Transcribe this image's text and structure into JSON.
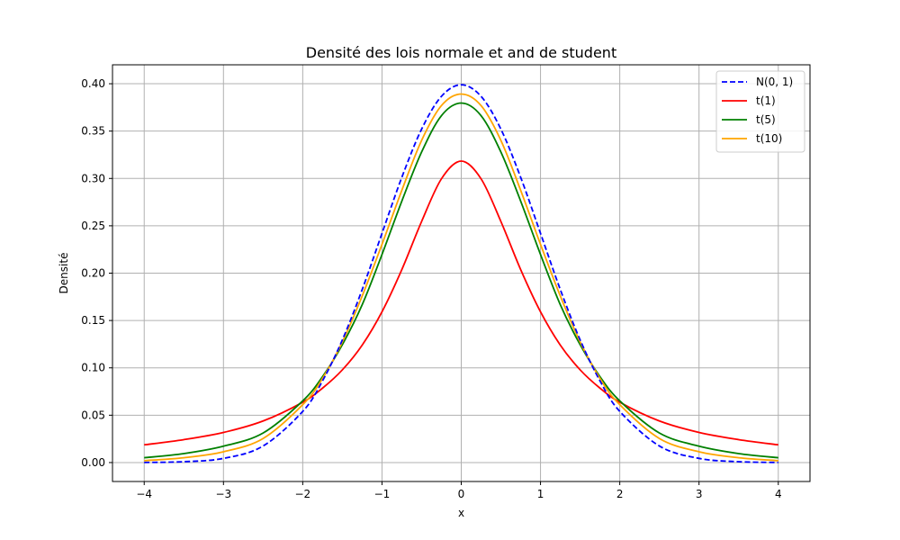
{
  "chart_data": {
    "type": "line",
    "title": "Densité des lois normale et and de student",
    "xlabel": "x",
    "ylabel": "Densité",
    "xlim": [
      -4.4,
      4.4
    ],
    "ylim": [
      -0.02,
      0.42
    ],
    "x_ticks": [
      -4,
      -3,
      -2,
      -1,
      0,
      1,
      2,
      3,
      4
    ],
    "x_tick_labels": [
      "−4",
      "−3",
      "−2",
      "−1",
      "0",
      "1",
      "2",
      "3",
      "4"
    ],
    "y_ticks": [
      0.0,
      0.05,
      0.1,
      0.15,
      0.2,
      0.25,
      0.3,
      0.35,
      0.4
    ],
    "y_tick_labels": [
      "0.00",
      "0.05",
      "0.10",
      "0.15",
      "0.20",
      "0.25",
      "0.30",
      "0.35",
      "0.40"
    ],
    "grid": true,
    "legend_position": "top-right",
    "x": [
      -4,
      -3.5,
      -3,
      -2.5,
      -2,
      -1.75,
      -1.5,
      -1.25,
      -1,
      -0.75,
      -0.5,
      -0.25,
      0,
      0.25,
      0.5,
      0.75,
      1,
      1.25,
      1.5,
      1.75,
      2,
      2.5,
      3,
      3.5,
      4
    ],
    "series": [
      {
        "name": "N(0, 1)",
        "color": "#0000ff",
        "dash": "dashed",
        "values": [
          0.0001,
          0.0009,
          0.0044,
          0.0175,
          0.054,
          0.0863,
          0.1295,
          0.1826,
          0.242,
          0.3011,
          0.3521,
          0.3867,
          0.3989,
          0.3867,
          0.3521,
          0.3011,
          0.242,
          0.1826,
          0.1295,
          0.0863,
          0.054,
          0.0175,
          0.0044,
          0.0009,
          0.0001
        ]
      },
      {
        "name": "t(1)",
        "color": "#ff0000",
        "dash": "solid",
        "values": [
          0.0187,
          0.0242,
          0.0318,
          0.0439,
          0.0637,
          0.0786,
          0.0979,
          0.124,
          0.1592,
          0.2037,
          0.2546,
          0.2996,
          0.3183,
          0.2996,
          0.2546,
          0.2037,
          0.1592,
          0.124,
          0.0979,
          0.0786,
          0.0637,
          0.0439,
          0.0318,
          0.0242,
          0.0187
        ]
      },
      {
        "name": "t(5)",
        "color": "#008000",
        "dash": "solid",
        "values": [
          0.0051,
          0.0095,
          0.0173,
          0.0312,
          0.0651,
          0.0907,
          0.1245,
          0.1666,
          0.2197,
          0.276,
          0.3279,
          0.3663,
          0.3796,
          0.3663,
          0.3279,
          0.276,
          0.2197,
          0.1666,
          0.1245,
          0.0907,
          0.0651,
          0.0312,
          0.0173,
          0.0095,
          0.0051
        ]
      },
      {
        "name": "t(10)",
        "color": "#ffa500",
        "dash": "solid",
        "values": [
          0.002,
          0.0051,
          0.0114,
          0.0254,
          0.0611,
          0.0888,
          0.1274,
          0.1758,
          0.2304,
          0.2874,
          0.3402,
          0.3769,
          0.3891,
          0.3769,
          0.3402,
          0.2874,
          0.2304,
          0.1758,
          0.1274,
          0.0888,
          0.0611,
          0.0254,
          0.0114,
          0.0051,
          0.002
        ]
      }
    ]
  }
}
